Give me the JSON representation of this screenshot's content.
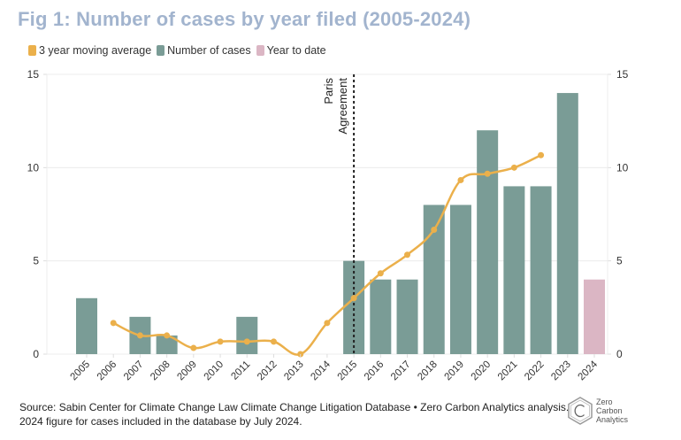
{
  "title": "Fig 1: Number of cases by year filed (2005-2024)",
  "legend": [
    {
      "label": "3 year moving average",
      "color": "#ebb04b"
    },
    {
      "label": "Number of cases",
      "color": "#7a9c96"
    },
    {
      "label": "Year to date",
      "color": "#dbb6c4"
    }
  ],
  "footer": {
    "line1": "Source: Sabin Center for Climate Change Law Climate Change Litigation Database • Zero Carbon Analytics analysis.",
    "line2": "2024 figure for cases included in the database by July 2024."
  },
  "logo": {
    "line1": "Zero",
    "line2": "Carbon",
    "line3": "Analytics",
    "icon": "hexagon-c-logo-icon"
  },
  "chart_data": {
    "type": "bar",
    "title": "Fig 1: Number of cases by year filed (2005-2024)",
    "xlabel": "",
    "ylabel": "",
    "ylim": [
      0,
      15
    ],
    "yticks": [
      0,
      5,
      10,
      15
    ],
    "grid": true,
    "legend_position": "top-left",
    "categories": [
      "2005",
      "2006",
      "2007",
      "2008",
      "2009",
      "2010",
      "2011",
      "2012",
      "2013",
      "2014",
      "2015",
      "2016",
      "2017",
      "2018",
      "2019",
      "2020",
      "2021",
      "2022",
      "2023",
      "2024"
    ],
    "series": [
      {
        "name": "Number of cases",
        "type": "bar",
        "color": "#7a9c96",
        "values": [
          3,
          0,
          2,
          1,
          0,
          0,
          2,
          0,
          0,
          0,
          5,
          4,
          4,
          8,
          8,
          12,
          9,
          9,
          14,
          null
        ]
      },
      {
        "name": "Year to date",
        "type": "bar",
        "color": "#dbb6c4",
        "values": [
          null,
          null,
          null,
          null,
          null,
          null,
          null,
          null,
          null,
          null,
          null,
          null,
          null,
          null,
          null,
          null,
          null,
          null,
          null,
          4
        ]
      },
      {
        "name": "3 year moving average",
        "type": "line",
        "color": "#ebb04b",
        "values": [
          null,
          1.67,
          1,
          1,
          0.33,
          0.67,
          0.67,
          0.67,
          0,
          1.67,
          3,
          4.33,
          5.33,
          6.67,
          9.33,
          9.67,
          10,
          10.67,
          null,
          null
        ]
      }
    ],
    "annotations": [
      {
        "type": "vertical-dashed-line",
        "at": "2015",
        "label": "Paris Agreement"
      }
    ]
  }
}
